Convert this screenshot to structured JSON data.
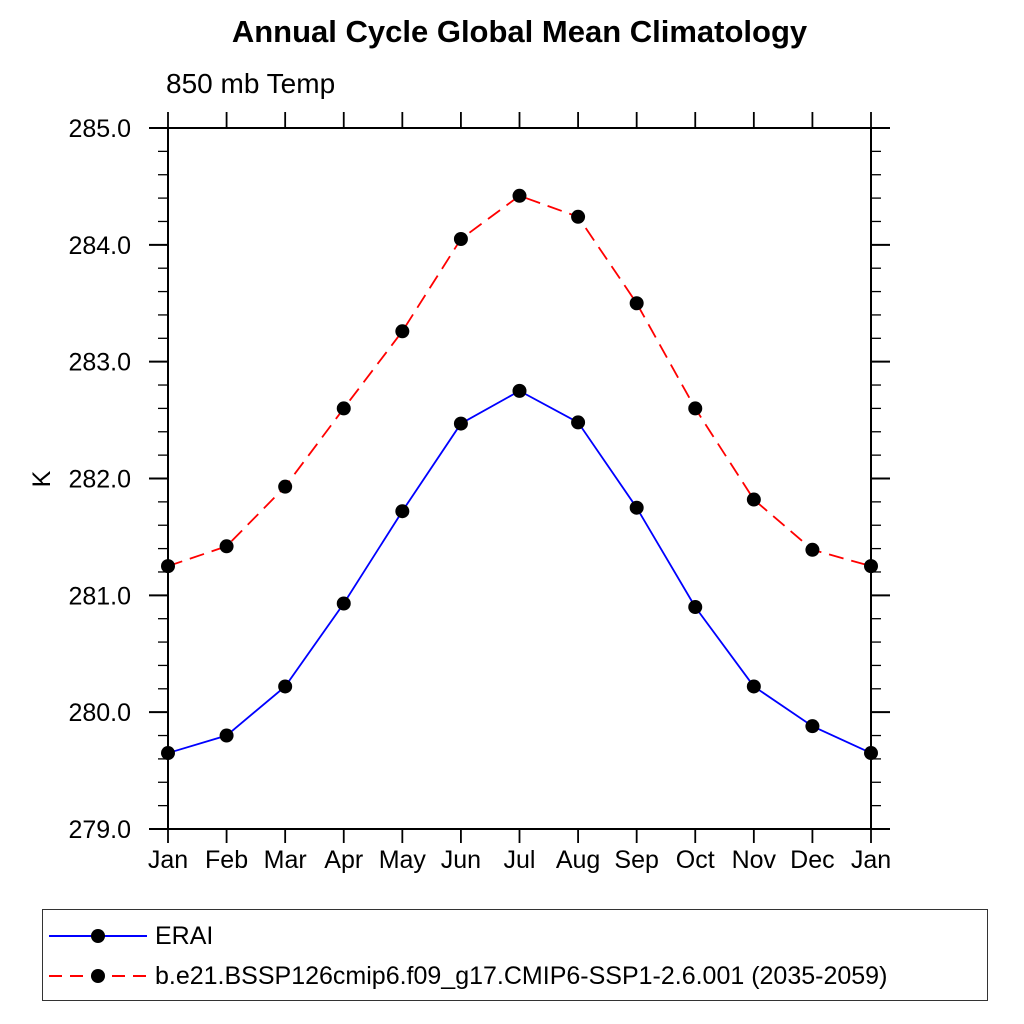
{
  "chart_data": {
    "type": "line",
    "title": "Annual Cycle Global Mean Climatology",
    "subtitle": "850 mb Temp",
    "ylabel": "K",
    "xlabel": "",
    "categories": [
      "Jan",
      "Feb",
      "Mar",
      "Apr",
      "May",
      "Jun",
      "Jul",
      "Aug",
      "Sep",
      "Oct",
      "Nov",
      "Dec",
      "Jan"
    ],
    "ylim": [
      279.0,
      285.0
    ],
    "ytick_interval": 1.0,
    "yminor_interval": 0.2,
    "ytick_labels": [
      "279.0",
      "280.0",
      "281.0",
      "282.0",
      "283.0",
      "284.0",
      "285.0"
    ],
    "grid": false,
    "legend_position": "bottom-left-box",
    "frame_color": "#000000",
    "series": [
      {
        "name": "ERAI",
        "color": "#0000ff",
        "style": "solid",
        "marker": "filled-circle",
        "marker_color": "#000000",
        "values": [
          279.65,
          279.8,
          280.22,
          280.93,
          281.72,
          282.47,
          282.75,
          282.48,
          281.75,
          280.9,
          280.22,
          279.88,
          279.65
        ]
      },
      {
        "name": "b.e21.BSSP126cmip6.f09_g17.CMIP6-SSP1-2.6.001 (2035-2059)",
        "color": "#ff0000",
        "style": "dashed",
        "marker": "filled-circle",
        "marker_color": "#000000",
        "values": [
          281.25,
          281.42,
          281.93,
          282.6,
          283.26,
          284.05,
          284.42,
          284.24,
          283.5,
          282.6,
          281.82,
          281.39,
          281.25
        ]
      }
    ]
  }
}
